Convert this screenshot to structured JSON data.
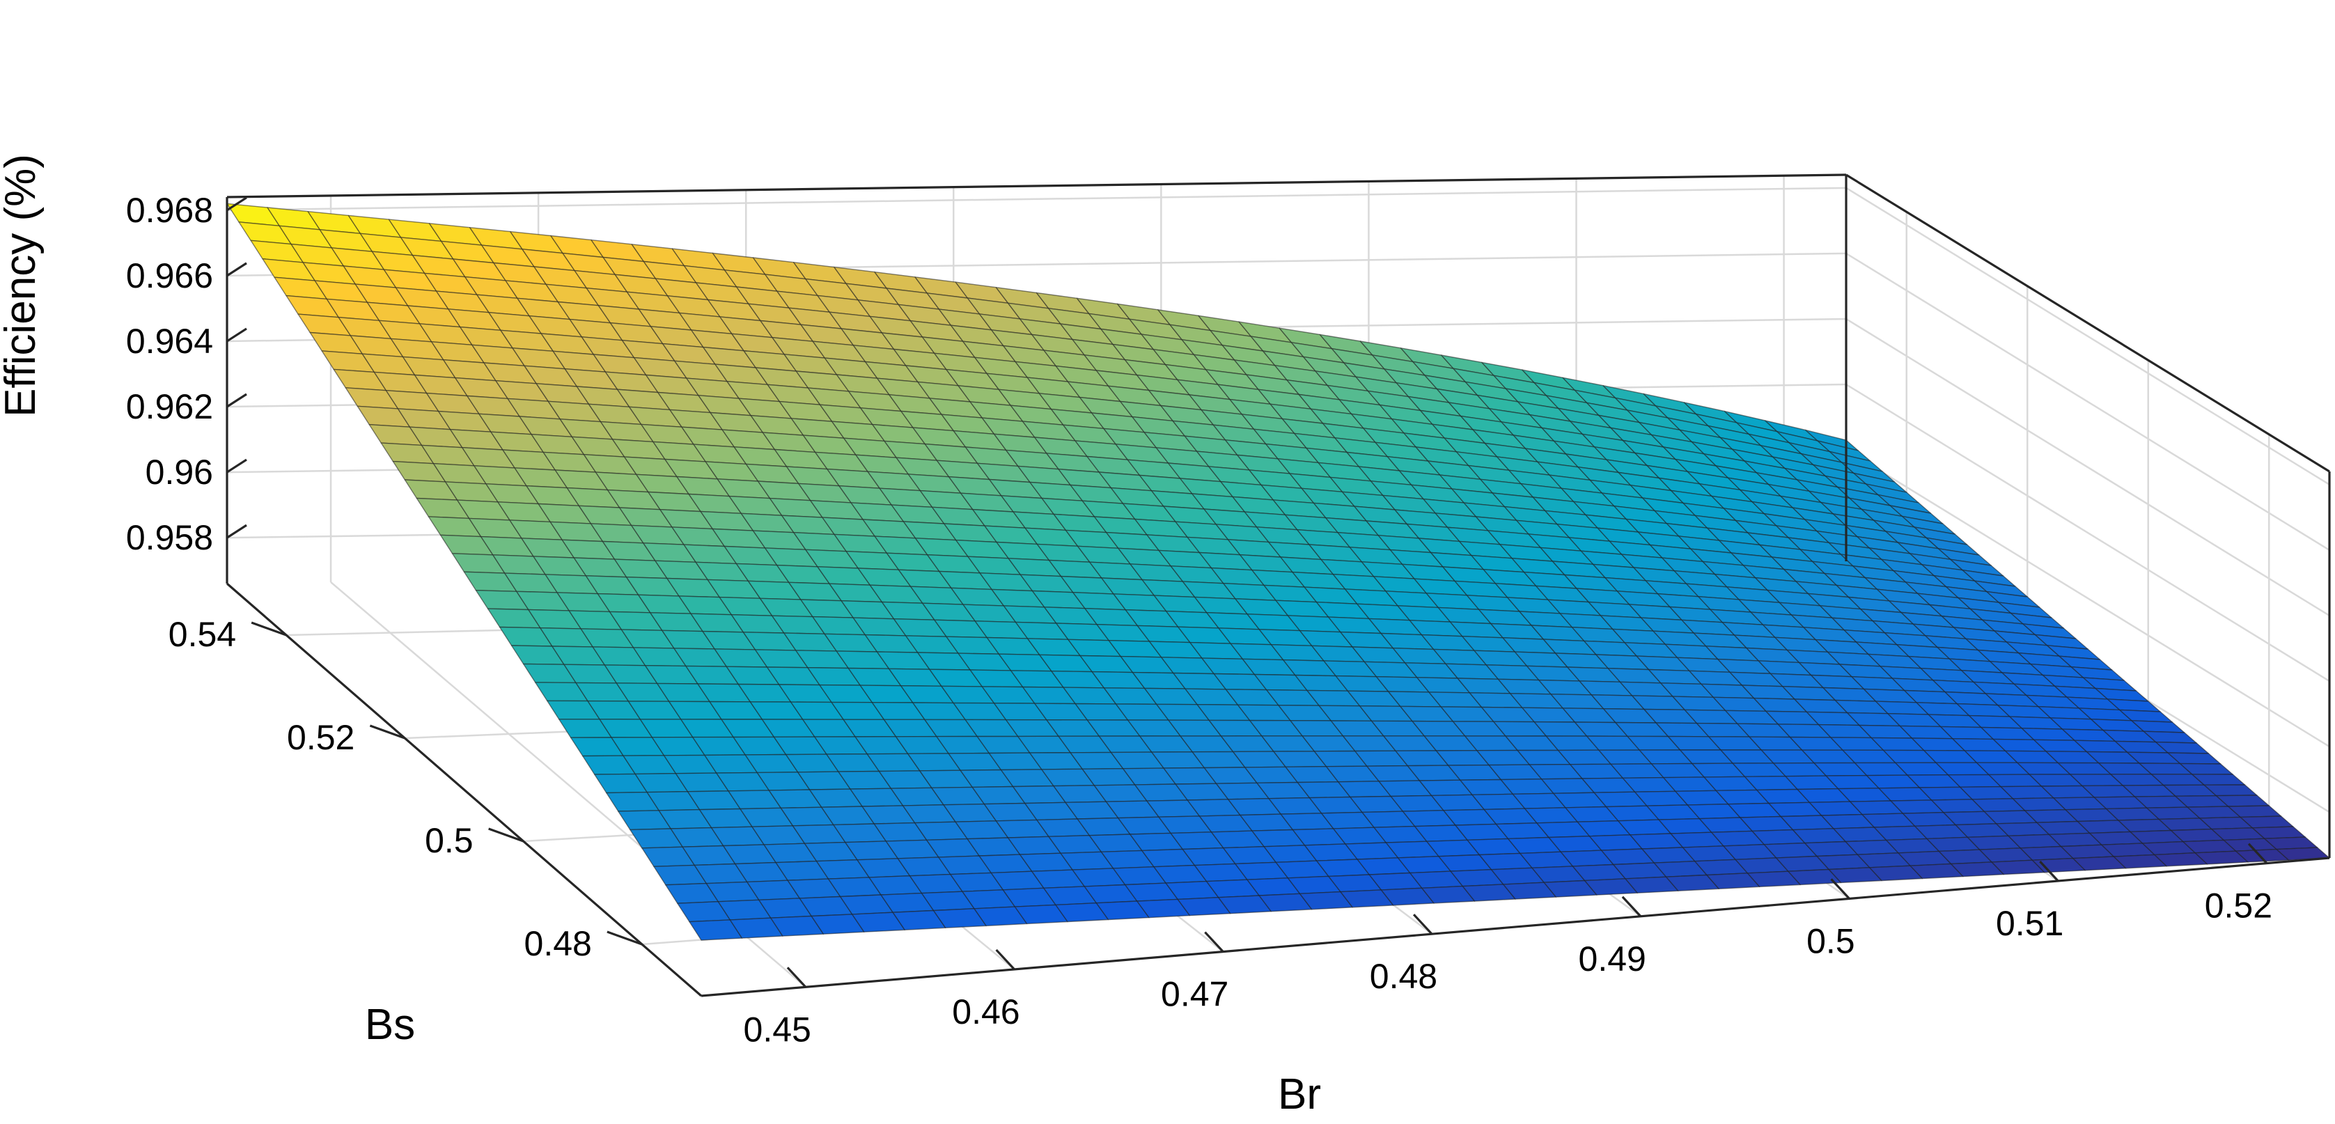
{
  "chart_data": {
    "type": "surface",
    "title": "",
    "xlabel": "Br",
    "ylabel": "Bs",
    "zlabel": "Efficiency (%)",
    "xlim": [
      0.445,
      0.523
    ],
    "ylim": [
      0.47,
      0.55
    ],
    "zlim": [
      0.9566,
      0.9684
    ],
    "x_ticks": [
      "0.45",
      "0.46",
      "0.47",
      "0.48",
      "0.49",
      "0.5",
      "0.51",
      "0.52"
    ],
    "y_ticks": [
      "0.48",
      "0.5",
      "0.52",
      "0.54"
    ],
    "z_ticks": [
      "0.958",
      "0.96",
      "0.962",
      "0.964",
      "0.966",
      "0.968"
    ],
    "grid": true,
    "colormap": "parula",
    "colormap_colors": [
      "#352a87",
      "#0f5cdd",
      "#1481d6",
      "#06a4ca",
      "#2eb7a4",
      "#87bf77",
      "#d1bb59",
      "#fec832",
      "#f9fb0e"
    ],
    "surface_corners": [
      {
        "x": 0.445,
        "y": 0.47,
        "z": 0.9583
      },
      {
        "x": 0.445,
        "y": 0.55,
        "z": 0.9682
      },
      {
        "x": 0.523,
        "y": 0.55,
        "z": 0.961
      },
      {
        "x": 0.523,
        "y": 0.47,
        "z": 0.9566
      }
    ],
    "grid_mesh": {
      "rows": 41,
      "cols": 41
    }
  }
}
